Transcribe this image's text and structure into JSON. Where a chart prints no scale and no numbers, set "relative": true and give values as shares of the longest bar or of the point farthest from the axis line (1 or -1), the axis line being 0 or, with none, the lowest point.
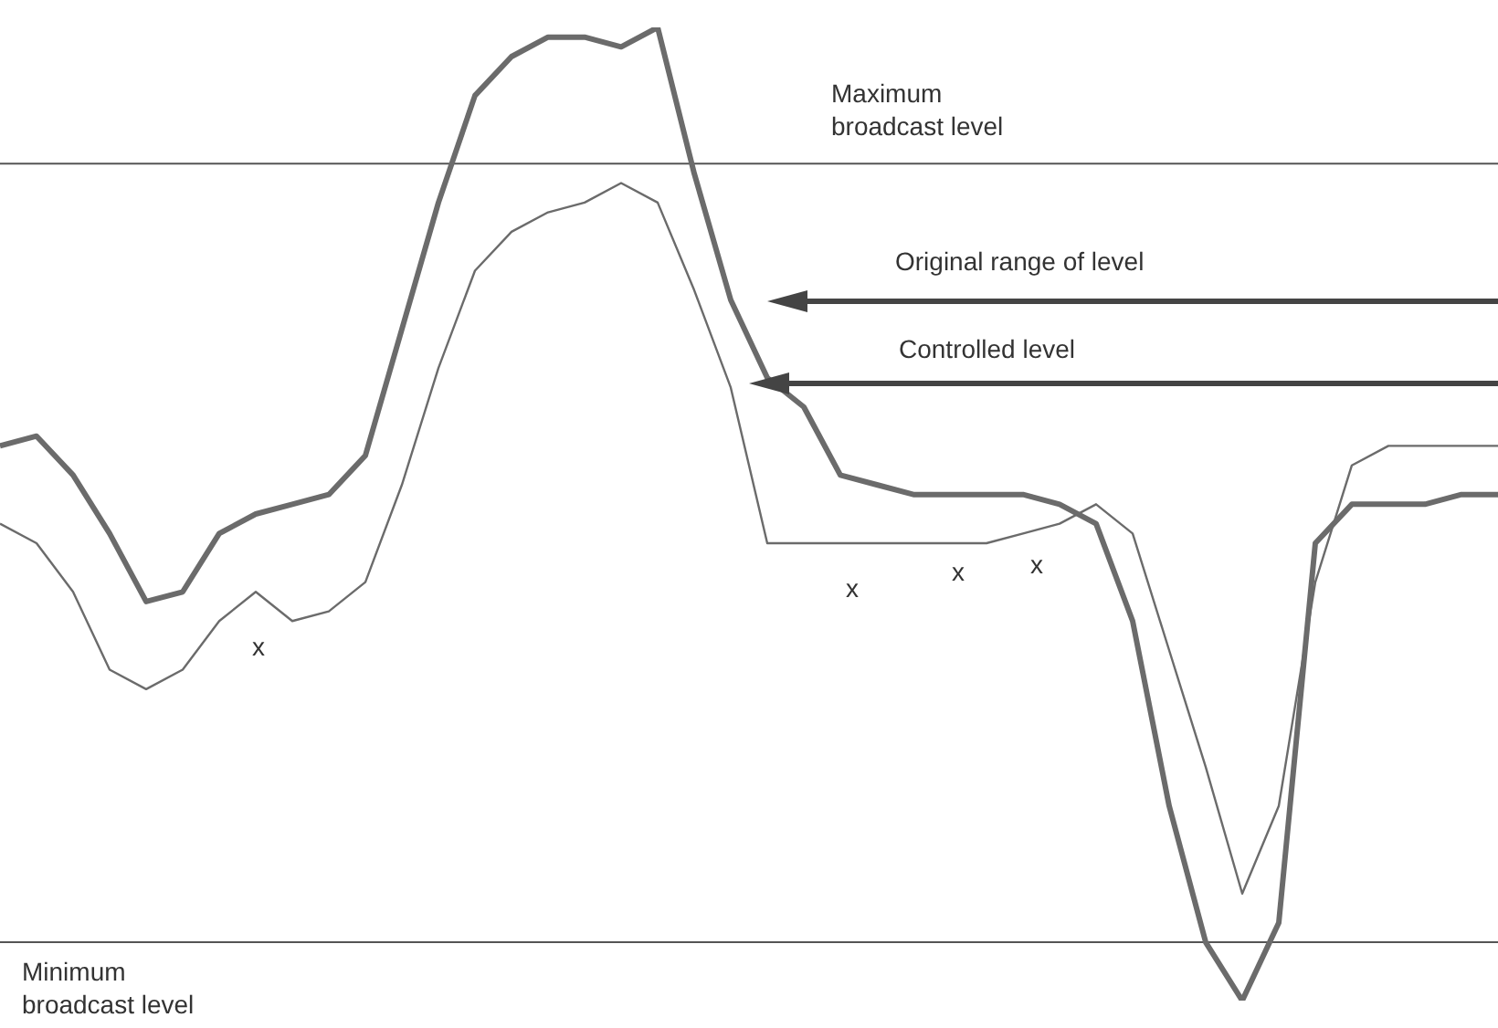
{
  "chart_data": {
    "type": "line",
    "relative": true,
    "marker": "none",
    "categories": [
      null,
      null,
      null,
      null,
      null,
      null,
      null,
      null,
      null,
      null,
      null,
      null,
      null,
      null,
      null,
      null,
      null,
      null,
      null,
      null,
      null,
      null,
      null,
      null,
      null,
      null,
      null,
      null,
      null,
      null,
      null,
      null,
      null,
      null,
      null,
      null,
      null,
      null,
      null,
      null,
      null,
      null
    ],
    "series": [
      {
        "color": "#6b6b6b",
        "values": [
          0.57,
          0.58,
          0.54,
          0.48,
          0.41,
          0.42,
          0.48,
          0.5,
          0.51,
          0.52,
          0.56,
          0.69,
          0.82,
          0.93,
          0.97,
          0.99,
          0.99,
          0.98,
          1,
          0.85,
          0.72,
          0.64,
          0.61,
          0.54,
          0.53,
          0.52,
          0.52,
          0.52,
          0.52,
          0.51,
          0.49,
          0.39,
          0.2,
          0.06,
          0,
          0.08,
          0.47,
          0.51,
          0.51,
          0.51,
          0.52,
          0.52
        ]
      },
      {
        "color": "#6b6b6b",
        "values": [
          0.49,
          0.47,
          0.42,
          0.34,
          0.32,
          0.34,
          0.39,
          0.42,
          0.39,
          0.4,
          0.43,
          0.53,
          0.65,
          0.75,
          0.79,
          0.81,
          0.82,
          0.84,
          0.82,
          0.73,
          0.63,
          0.47,
          0.47,
          0.47,
          0.47,
          0.47,
          0.47,
          0.47,
          0.48,
          0.49,
          0.51,
          0.48,
          0.36,
          0.24,
          0.11,
          0.2,
          0.43,
          0.55,
          0.57,
          0.57,
          0.57,
          0.57
        ]
      }
    ],
    "ref_lines": [
      {
        "axis": "y",
        "value": 0.86,
        "label": "Maximum broadcast level",
        "color": "#555555"
      },
      {
        "axis": "y",
        "value": 0.06,
        "label": "Minimum broadcast level",
        "color": "#555555"
      }
    ],
    "annotations": [
      "Original range of level",
      "Controlled level",
      "x",
      "x",
      "x",
      "x"
    ]
  }
}
